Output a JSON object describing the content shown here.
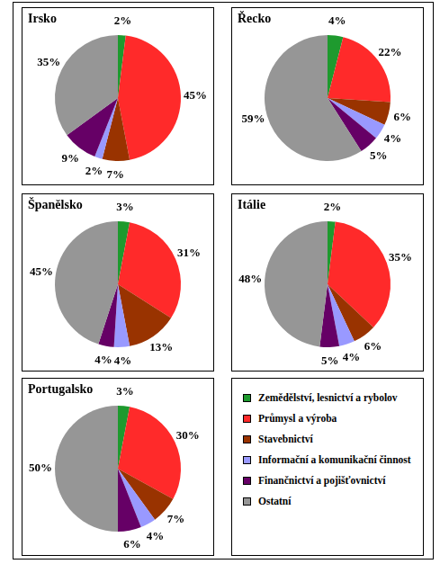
{
  "chart_data": [
    {
      "type": "pie",
      "title": "Irsko",
      "categories": [
        "Zemědělství, lesnictví a rybolov",
        "Průmysl a výroba",
        "Stavebnictví",
        "Informační a komunikační činnost",
        "Finančnictví a pojišťovnictví",
        "Ostatní"
      ],
      "values": [
        2,
        45,
        7,
        2,
        9,
        35
      ],
      "value_labels": [
        "2%",
        "45%",
        "7%",
        "2%",
        "9%",
        "35%"
      ],
      "colors": [
        "#1e9a2e",
        "#ff2a2a",
        "#993300",
        "#9999ff",
        "#660066",
        "#969696"
      ],
      "data_labels": true
    },
    {
      "type": "pie",
      "title": "Řecko",
      "categories": [
        "Zemědělství, lesnictví a rybolov",
        "Průmysl a výroba",
        "Stavebnictví",
        "Informační a komunikační činnost",
        "Finančnictví a pojišťovnictví",
        "Ostatní"
      ],
      "values": [
        4,
        22,
        6,
        4,
        5,
        59
      ],
      "value_labels": [
        "4%",
        "22%",
        "6%",
        "4%",
        "5%",
        "59%"
      ],
      "colors": [
        "#1e9a2e",
        "#ff2a2a",
        "#993300",
        "#9999ff",
        "#660066",
        "#969696"
      ],
      "data_labels": true
    },
    {
      "type": "pie",
      "title": "Španělsko",
      "categories": [
        "Zemědělství, lesnictví a rybolov",
        "Průmysl a výroba",
        "Stavebnictví",
        "Informační a komunikační činnost",
        "Finančnictví a pojišťovnictví",
        "Ostatní"
      ],
      "values": [
        3,
        31,
        13,
        4,
        4,
        45
      ],
      "value_labels": [
        "3%",
        "31%",
        "13%",
        "4%",
        "4%",
        "45%"
      ],
      "colors": [
        "#1e9a2e",
        "#ff2a2a",
        "#993300",
        "#9999ff",
        "#660066",
        "#969696"
      ],
      "data_labels": true
    },
    {
      "type": "pie",
      "title": "Itálie",
      "categories": [
        "Zemědělství, lesnictví a rybolov",
        "Průmysl a výroba",
        "Stavebnictví",
        "Informační a komunikační činnost",
        "Finančnictví a pojišťovnictví",
        "Ostatní"
      ],
      "values": [
        2,
        35,
        6,
        4,
        5,
        48
      ],
      "value_labels": [
        "2%",
        "35%",
        "6%",
        "4%",
        "5%",
        "48%"
      ],
      "colors": [
        "#1e9a2e",
        "#ff2a2a",
        "#993300",
        "#9999ff",
        "#660066",
        "#969696"
      ],
      "data_labels": true
    },
    {
      "type": "pie",
      "title": "Portugalsko",
      "categories": [
        "Zemědělství, lesnictví a rybolov",
        "Průmysl a výroba",
        "Stavebnictví",
        "Informační a komunikační činnost",
        "Finančnictví a pojišťovnictví",
        "Ostatní"
      ],
      "values": [
        3,
        30,
        7,
        4,
        6,
        50
      ],
      "value_labels": [
        "3%",
        "30%",
        "7%",
        "4%",
        "6%",
        "50%"
      ],
      "colors": [
        "#1e9a2e",
        "#ff2a2a",
        "#993300",
        "#9999ff",
        "#660066",
        "#969696"
      ],
      "data_labels": true
    }
  ]
}
